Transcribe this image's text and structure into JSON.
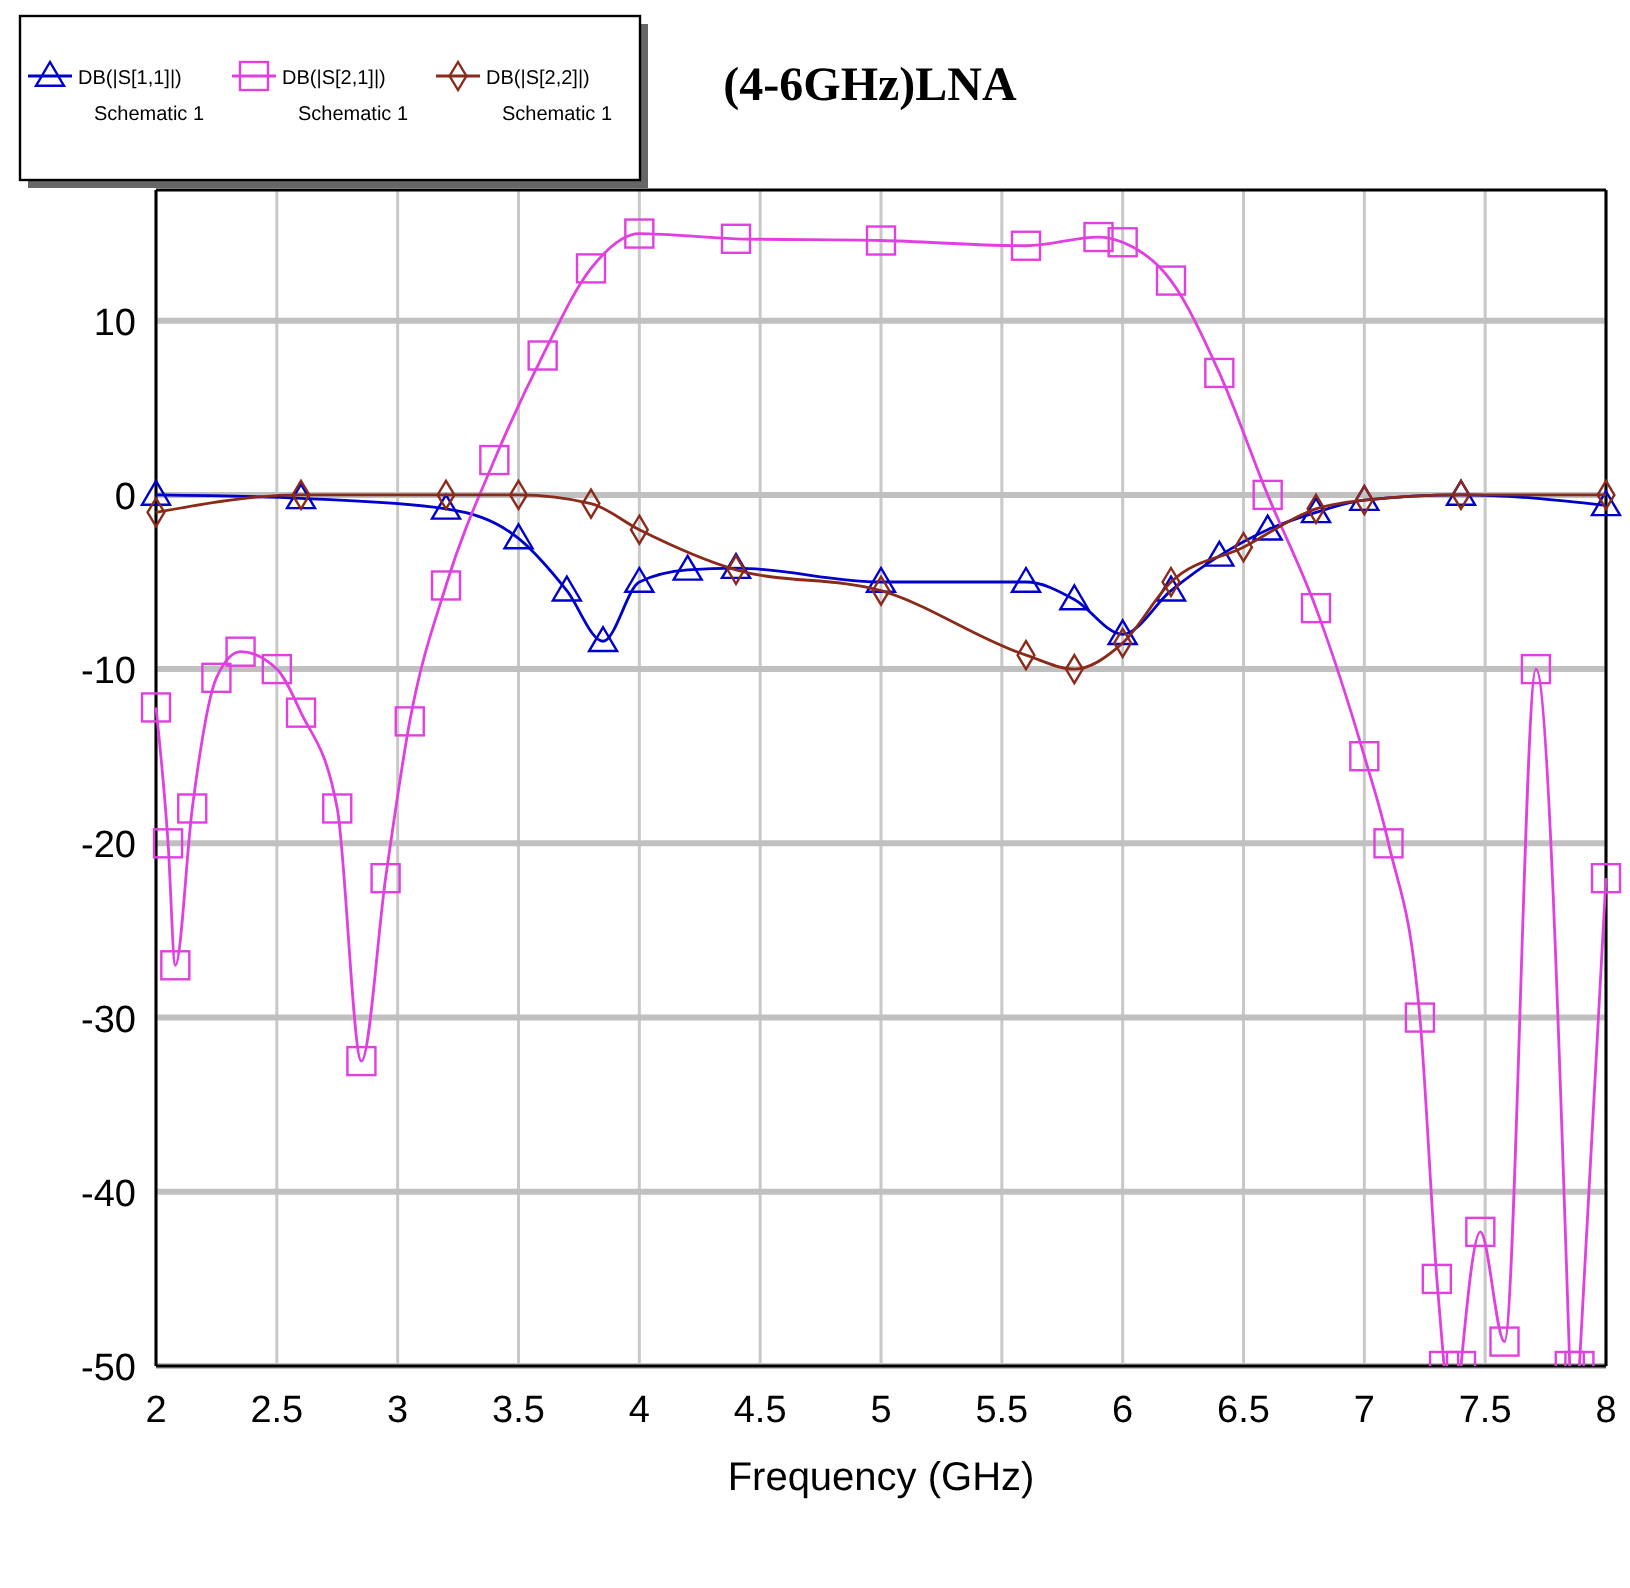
{
  "chart_data": {
    "type": "line",
    "title": "(4-6GHz)LNA",
    "xlabel": "Frequency (GHz)",
    "xlim": [
      2,
      8
    ],
    "xticks": [
      2,
      2.5,
      3,
      3.5,
      4,
      4.5,
      5,
      5.5,
      6,
      6.5,
      7,
      7.5,
      8
    ],
    "ylim": [
      -50,
      17.5
    ],
    "yticks": [
      -50,
      -40,
      -30,
      -20,
      -10,
      0,
      10
    ],
    "grid": true,
    "legend": "top left",
    "line_style": "solid",
    "series": [
      {
        "name": "DB(|S[1,1]|) Schematic 1",
        "color": "#0000cc",
        "marker": "triangle",
        "x": [
          2,
          2.6,
          3.2,
          3.5,
          3.7,
          3.85,
          4.0,
          4.2,
          4.4,
          5,
          5.6,
          5.8,
          6.0,
          6.2,
          6.4,
          6.6,
          6.8,
          7,
          7.4,
          8
        ],
        "values": [
          0,
          -0.2,
          -0.8,
          -2.5,
          -5.5,
          -8.4,
          -5,
          -4.3,
          -4.2,
          -5,
          -5,
          -6,
          -8,
          -5.5,
          -3.5,
          -2,
          -1,
          -0.3,
          0,
          -0.6
        ]
      },
      {
        "name": "DB(|S[2,1]|) Schematic 1",
        "color": "#e040e0",
        "marker": "square",
        "x": [
          2,
          2.05,
          2.08,
          2.15,
          2.25,
          2.35,
          2.5,
          2.6,
          2.75,
          2.85,
          2.95,
          3.05,
          3.2,
          3.4,
          3.6,
          3.8,
          4.0,
          4.4,
          5,
          5.6,
          5.9,
          6.0,
          6.2,
          6.4,
          6.6,
          6.8,
          7.0,
          7.1,
          7.23,
          7.3,
          7.33,
          7.36,
          7.4,
          7.48,
          7.58,
          7.71,
          7.85,
          7.87,
          7.89,
          8
        ],
        "values": [
          -12.2,
          -20,
          -27,
          -18,
          -10.5,
          -9,
          -10,
          -12.5,
          -18,
          -32.5,
          -22,
          -13,
          -5.2,
          2,
          8,
          13,
          15,
          14.7,
          14.6,
          14.3,
          14.8,
          14.5,
          12.3,
          7,
          0,
          -6.5,
          -15,
          -20,
          -30,
          -45,
          -50,
          null,
          -50,
          -42.3,
          -48.6,
          -10,
          -50,
          null,
          -50,
          -22
        ]
      },
      {
        "name": "DB(|S[2,2]|) Schematic 1",
        "color": "#8b2a1a",
        "marker": "diamond",
        "x": [
          2,
          2.6,
          3.2,
          3.5,
          3.8,
          4.0,
          4.4,
          5,
          5.6,
          5.8,
          6.0,
          6.2,
          6.5,
          6.8,
          7,
          7.4,
          8
        ],
        "values": [
          -1,
          0,
          0,
          0,
          -0.5,
          -2,
          -4.3,
          -5.5,
          -9.2,
          -10,
          -8.5,
          -5,
          -3,
          -0.8,
          -0.3,
          0,
          0
        ]
      }
    ]
  }
}
